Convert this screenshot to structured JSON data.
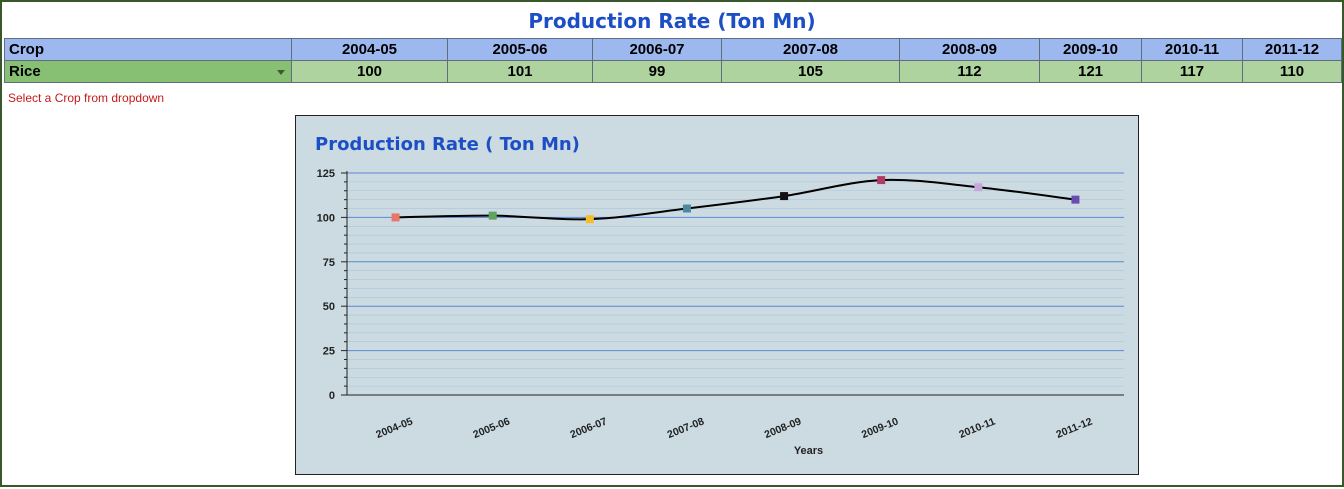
{
  "sheet": {
    "title": "Production Rate (Ton Mn)",
    "header": {
      "crop_label": "Crop",
      "years": [
        "2004-05",
        "2005-06",
        "2006-07",
        "2007-08",
        "2008-09",
        "2009-10",
        "2010-11",
        "2011-12"
      ]
    },
    "row": {
      "crop": "Rice",
      "values": [
        "100",
        "101",
        "99",
        "105",
        "112",
        "121",
        "117",
        "110"
      ]
    },
    "hint": "Select a Crop from dropdown"
  },
  "chart_data": {
    "type": "line",
    "title": "Production Rate ( Ton Mn)",
    "xlabel": "Years",
    "ylabel": "",
    "categories": [
      "2004-05",
      "2005-06",
      "2006-07",
      "2007-08",
      "2008-09",
      "2009-10",
      "2010-11",
      "2011-12"
    ],
    "series": [
      {
        "values": [
          100,
          101,
          99,
          105,
          112,
          121,
          117,
          110
        ]
      }
    ],
    "ylim": [
      0,
      125
    ],
    "yticks": [
      0,
      25,
      50,
      75,
      100,
      125
    ],
    "grid": true,
    "legend": "none",
    "line_color": "#000000",
    "marker_colors": [
      "#e8776a",
      "#5fa35c",
      "#f5bd2c",
      "#4b8a9e",
      "#111111",
      "#b23a65",
      "#c7a6d8",
      "#6a4bb0"
    ],
    "title_color": "#1c4fc5",
    "background": "#cbdbe1",
    "grid_color": "#4f7fd6"
  }
}
